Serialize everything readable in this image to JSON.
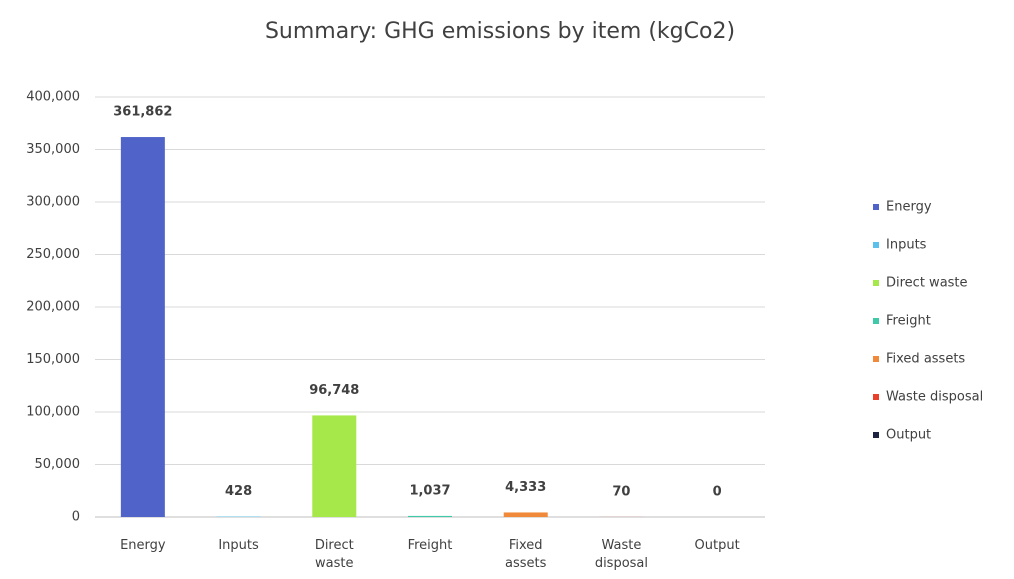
{
  "chart_data": {
    "type": "bar",
    "title": "Summary: GHG emissions by item (kgCo2)",
    "categories": [
      "Energy",
      "Inputs",
      "Direct waste",
      "Freight",
      "Fixed assets",
      "Waste disposal",
      "Output"
    ],
    "values": [
      361862,
      428,
      96748,
      1037,
      4333,
      70,
      0
    ],
    "value_labels": [
      "361,862",
      "428",
      "96,748",
      "1,037",
      "4,333",
      "70",
      "0"
    ],
    "colors": [
      "#4f63c9",
      "#5bc0eb",
      "#a6e84a",
      "#3fc9a8",
      "#f08a3a",
      "#e8402a",
      "#1c2340"
    ],
    "ylim": [
      0,
      400000
    ],
    "yticks": [
      0,
      {
        "value": 50000,
        "label": "50,000"
      },
      {
        "value": 100000,
        "label": "100,000"
      },
      {
        "value": 150000,
        "label": "150,000"
      },
      {
        "value": 200000,
        "label": "200,000"
      },
      {
        "value": 250000,
        "label": "250,000"
      },
      {
        "value": 300000,
        "label": "300,000"
      },
      {
        "value": 350000,
        "label": "350,000"
      },
      {
        "value": 400000,
        "label": "400,000"
      }
    ],
    "grid": true,
    "legend": "right"
  }
}
